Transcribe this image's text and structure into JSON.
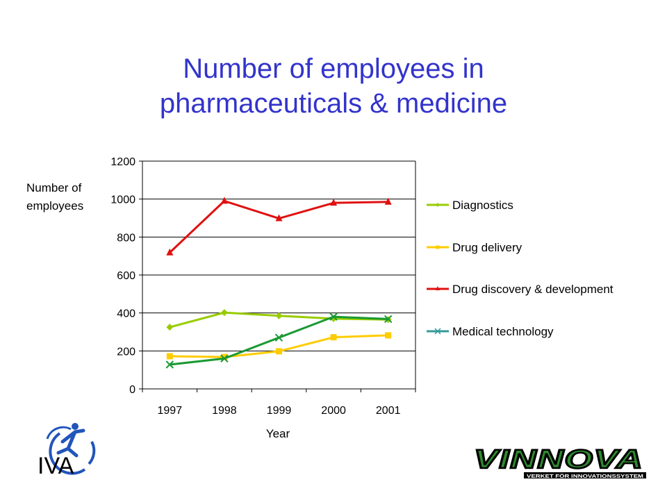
{
  "slide": {
    "title_line1": "Number of employees in",
    "title_line2": "pharmaceuticals & medicine"
  },
  "logos": {
    "left": "IVA",
    "right": "VINNOVA",
    "right_tagline": "VERKET FÖR INNOVATIONSSYSTEM"
  },
  "chart_data": {
    "type": "line",
    "title": "",
    "xlabel": "Year",
    "ylabel_line1": "Number of",
    "ylabel_line2": "employees",
    "categories": [
      "1997",
      "1998",
      "1999",
      "2000",
      "2001"
    ],
    "ylim": [
      0,
      1200
    ],
    "yticks": [
      0,
      200,
      400,
      600,
      800,
      1000,
      1200
    ],
    "grid": true,
    "legend_position": "right",
    "series": [
      {
        "name": "Diagnostics",
        "values": [
          325,
          402,
          385,
          370,
          365
        ],
        "color": "#99cc00",
        "marker": "diamond"
      },
      {
        "name": "Drug delivery",
        "values": [
          172,
          168,
          198,
          272,
          282
        ],
        "color": "#ffcc00",
        "marker": "square"
      },
      {
        "name": "Drug discovery & development",
        "values": [
          718,
          990,
          898,
          980,
          985
        ],
        "color": "#e01010",
        "marker": "triangle"
      },
      {
        "name": "Medical technology",
        "values": [
          128,
          160,
          270,
          380,
          368
        ],
        "color": "#1a9933",
        "marker": "x"
      }
    ],
    "legend_marker_colors": [
      "#99cc00",
      "#ffcc00",
      "#e01010",
      "#339999"
    ]
  }
}
